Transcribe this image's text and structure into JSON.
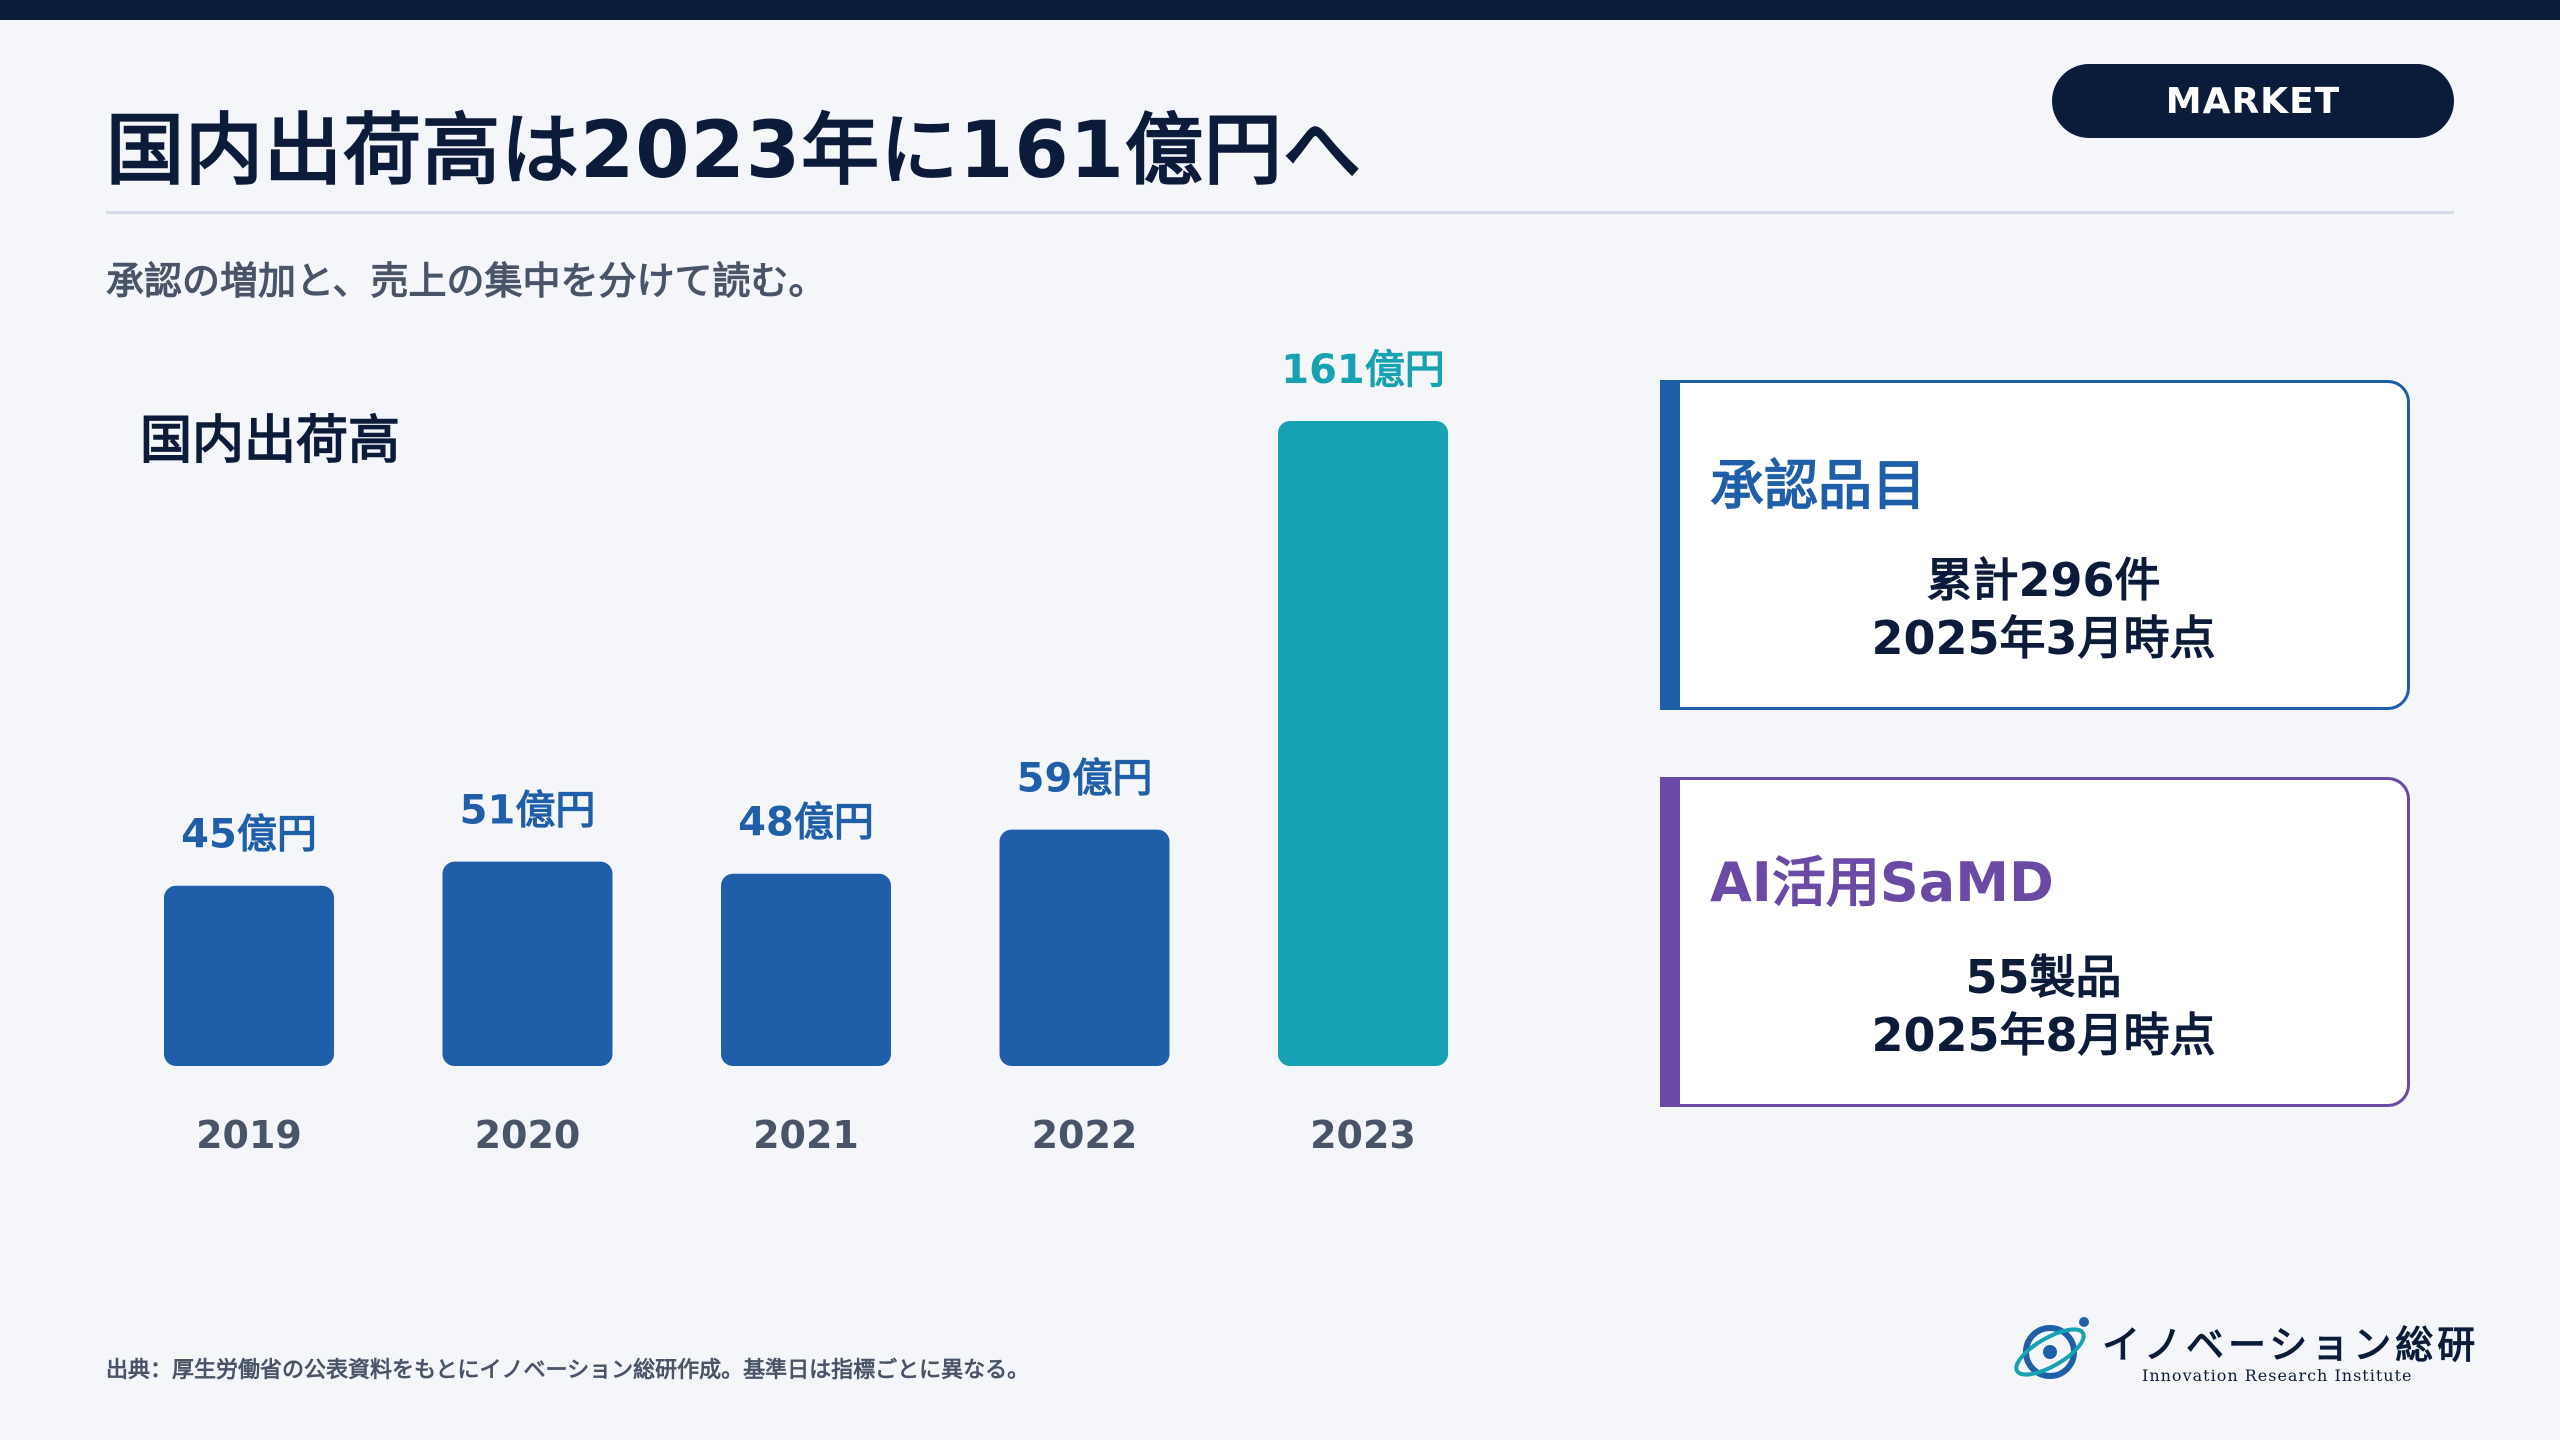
{
  "header": {
    "title": "国内出荷高は2023年に161億円へ",
    "badge": "MARKET",
    "subtitle": "承認の増加と、売上の集中を分けて読む。"
  },
  "chart_data": {
    "type": "bar",
    "title": "国内出荷高",
    "categories": [
      "2019",
      "2020",
      "2021",
      "2022",
      "2023"
    ],
    "values": [
      45,
      51,
      48,
      59,
      161
    ],
    "data_labels": [
      "45億円",
      "51億円",
      "48億円",
      "59億円",
      "161億円"
    ],
    "unit": "億円",
    "colors": {
      "default": "#1f5ea8",
      "highlight": "#17a2b3",
      "label_default": "#1f5ea8",
      "label_highlight": "#17a2b3",
      "tick_label": "#4a5468"
    },
    "highlight_index": 4,
    "grid": false,
    "ylim": [
      0,
      161
    ]
  },
  "cards": [
    {
      "heading": "承認品目",
      "lines": [
        "累計296件",
        "2025年3月時点"
      ],
      "color": "#1f5ea8"
    },
    {
      "heading": "AI活用SaMD",
      "lines": [
        "55製品",
        "2025年8月時点"
      ],
      "color": "#6a4aa5"
    }
  ],
  "footer": {
    "source": "出典：厚生労働省の公表資料をもとにイノベーション総研作成。基準日は指標ごとに異なる。"
  },
  "logo": {
    "name": "イノベーション総研",
    "sub": "Innovation Research Institute"
  }
}
